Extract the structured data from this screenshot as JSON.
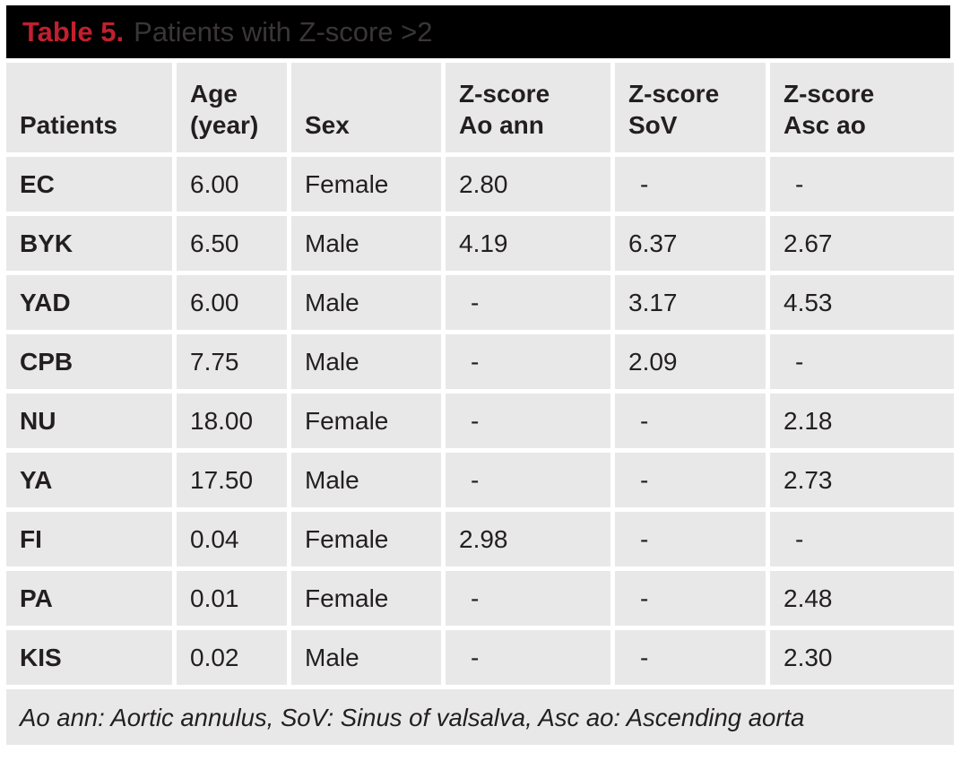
{
  "title": {
    "label": "Table 5.",
    "caption": "Patients with Z-score >2"
  },
  "table": {
    "columns": [
      "Patients",
      "Age\n(year)",
      "Sex",
      "Z-score\nAo ann",
      "Z-score\nSoV",
      "Z-score\nAsc ao"
    ],
    "rows": [
      [
        "EC",
        "6.00",
        "Female",
        "2.80",
        "-",
        "-"
      ],
      [
        "BYK",
        "6.50",
        "Male",
        "4.19",
        "6.37",
        "2.67"
      ],
      [
        "YAD",
        "6.00",
        "Male",
        "-",
        "3.17",
        "4.53"
      ],
      [
        "CPB",
        "7.75",
        "Male",
        "-",
        "2.09",
        "-"
      ],
      [
        "NU",
        "18.00",
        "Female",
        "-",
        "-",
        "2.18"
      ],
      [
        "YA",
        "17.50",
        "Male",
        "-",
        "-",
        "2.73"
      ],
      [
        "FI",
        "0.04",
        "Female",
        "2.98",
        "-",
        "-"
      ],
      [
        "PA",
        "0.01",
        "Female",
        "-",
        "-",
        "2.48"
      ],
      [
        "KIS",
        "0.02",
        "Male",
        "-",
        "-",
        "2.30"
      ]
    ],
    "footnote": "Ao ann: Aortic annulus, SoV: Sinus of valsalva, Asc ao: Ascending aorta"
  },
  "colors": {
    "accent_red": "#c1202f",
    "bar_black": "#000000",
    "cell_gray": "#e8e8e8",
    "text": "#231f20",
    "subtitle_gray": "#3a3637"
  }
}
